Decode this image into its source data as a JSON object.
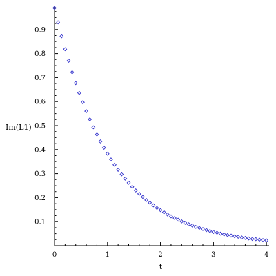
{
  "chart_data": {
    "type": "scatter",
    "title": "",
    "xlabel": "t",
    "ylabel": "Im(L1)",
    "xlim": [
      0,
      4.05
    ],
    "ylim": [
      0,
      1.0
    ],
    "grid": false,
    "marker": "diamond",
    "marker_color": "#3333cc",
    "x_ticks": [
      0,
      1,
      2,
      3,
      4
    ],
    "x_tick_labels": [
      "0",
      "1",
      "2",
      "3",
      "4"
    ],
    "y_ticks": [
      0.1,
      0.2,
      0.3,
      0.4,
      0.5,
      0.6,
      0.7,
      0.8,
      0.9
    ],
    "y_tick_labels": [
      "0.1",
      "0.2",
      "0.3",
      "0.4",
      "0.5",
      "0.6",
      "0.7",
      "0.8",
      "0.9"
    ],
    "series": [
      {
        "x": [
          0,
          0.0667,
          0.1333,
          0.2,
          0.2667,
          0.3333,
          0.4,
          0.4667,
          0.5333,
          0.6,
          0.6667,
          0.7333,
          0.8,
          0.8667,
          0.9333,
          1.0,
          1.0667,
          1.1333,
          1.2,
          1.2667,
          1.3333,
          1.4,
          1.4667,
          1.5333,
          1.6,
          1.6667,
          1.7333,
          1.8,
          1.8667,
          1.9333,
          2.0,
          2.0667,
          2.1333,
          2.2,
          2.2667,
          2.3333,
          2.4,
          2.4667,
          2.5333,
          2.6,
          2.6667,
          2.7333,
          2.8,
          2.8667,
          2.9333,
          3.0,
          3.0667,
          3.1333,
          3.2,
          3.2667,
          3.3333,
          3.4,
          3.4667,
          3.5333,
          3.6,
          3.6667,
          3.7333,
          3.8,
          3.8667,
          3.9333,
          4.0
        ],
        "y": [
          0.99,
          0.93,
          0.872,
          0.818,
          0.77,
          0.722,
          0.677,
          0.636,
          0.597,
          0.56,
          0.526,
          0.493,
          0.463,
          0.434,
          0.408,
          0.383,
          0.359,
          0.337,
          0.316,
          0.297,
          0.279,
          0.262,
          0.245,
          0.23,
          0.216,
          0.203,
          0.19,
          0.179,
          0.168,
          0.157,
          0.148,
          0.139,
          0.13,
          0.122,
          0.115,
          0.108,
          0.101,
          0.095,
          0.089,
          0.084,
          0.078,
          0.074,
          0.069,
          0.065,
          0.061,
          0.057,
          0.054,
          0.05,
          0.047,
          0.044,
          0.042,
          0.039,
          0.037,
          0.034,
          0.032,
          0.03,
          0.028,
          0.027,
          0.025,
          0.023,
          0.022
        ]
      }
    ]
  }
}
